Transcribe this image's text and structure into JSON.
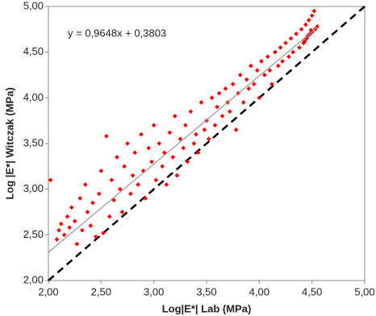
{
  "chart_data": {
    "type": "scatter",
    "x_label": "Log|E*| Lab (MPa)",
    "y_label": "Log |E*| Witczak (MPa)",
    "xlim": [
      2,
      5
    ],
    "ylim": [
      2,
      5
    ],
    "xticks": [
      {
        "value": 2,
        "label": "2,00"
      },
      {
        "value": 2.5,
        "label": "2,50"
      },
      {
        "value": 3,
        "label": "3,00"
      },
      {
        "value": 3.5,
        "label": "3,50"
      },
      {
        "value": 4,
        "label": "4,00"
      },
      {
        "value": 4.5,
        "label": "4,50"
      },
      {
        "value": 5,
        "label": "5,00"
      }
    ],
    "yticks": [
      {
        "value": 2,
        "label": "2,00"
      },
      {
        "value": 2.5,
        "label": "2,50"
      },
      {
        "value": 3,
        "label": "3,00"
      },
      {
        "value": 3.5,
        "label": "3,50"
      },
      {
        "value": 4,
        "label": "4,00"
      },
      {
        "value": 4.5,
        "label": "4,50"
      },
      {
        "value": 5,
        "label": "5,00"
      }
    ],
    "grid": false,
    "color": "#ff0000",
    "x": [
      2.02,
      2.08,
      2.1,
      2.12,
      2.15,
      2.18,
      2.2,
      2.22,
      2.25,
      2.27,
      2.3,
      2.32,
      2.35,
      2.37,
      2.4,
      2.42,
      2.45,
      2.48,
      2.5,
      2.52,
      2.55,
      2.58,
      2.6,
      2.62,
      2.65,
      2.68,
      2.7,
      2.72,
      2.75,
      2.78,
      2.8,
      2.82,
      2.85,
      2.88,
      2.9,
      2.92,
      2.95,
      2.98,
      3.0,
      3.02,
      3.05,
      3.08,
      3.1,
      3.12,
      3.15,
      3.18,
      3.2,
      3.22,
      3.25,
      3.28,
      3.3,
      3.32,
      3.35,
      3.38,
      3.4,
      3.42,
      3.45,
      3.48,
      3.5,
      3.52,
      3.55,
      3.58,
      3.6,
      3.62,
      3.65,
      3.68,
      3.7,
      3.72,
      3.75,
      3.78,
      3.8,
      3.82,
      3.85,
      3.88,
      3.9,
      3.92,
      3.95,
      3.98,
      4.0,
      4.02,
      4.05,
      4.08,
      4.1,
      4.12,
      4.15,
      4.18,
      4.2,
      4.22,
      4.25,
      4.28,
      4.3,
      4.32,
      4.35,
      4.38,
      4.4,
      4.42,
      4.44,
      4.45,
      4.47,
      4.48,
      4.5,
      4.5,
      4.52,
      4.53,
      4.55,
      4.46,
      4.49,
      4.43
    ],
    "y": [
      3.1,
      2.45,
      2.55,
      2.62,
      2.5,
      2.7,
      2.58,
      2.8,
      2.65,
      2.4,
      2.9,
      2.55,
      3.05,
      2.75,
      2.6,
      2.85,
      2.48,
      2.95,
      3.2,
      2.52,
      3.58,
      2.7,
      3.1,
      2.88,
      3.35,
      3.0,
      2.75,
      3.25,
      3.5,
      2.95,
      3.15,
      3.4,
      3.05,
      3.6,
      3.2,
      2.9,
      3.45,
      3.3,
      3.7,
      3.1,
      3.5,
      3.25,
      3.4,
      3.05,
      3.62,
      3.35,
      3.8,
      3.15,
      3.55,
      3.45,
      3.7,
      3.3,
      3.85,
      3.5,
      3.6,
      3.4,
      3.95,
      3.65,
      3.75,
      3.55,
      4.0,
      3.7,
      3.9,
      4.05,
      3.8,
      4.1,
      3.95,
      3.85,
      4.15,
      3.65,
      4.05,
      4.25,
      3.95,
      4.2,
      4.1,
      4.35,
      4.15,
      4.3,
      4.0,
      4.4,
      4.25,
      4.45,
      4.3,
      4.15,
      4.5,
      4.35,
      4.55,
      4.4,
      4.6,
      4.45,
      4.65,
      4.5,
      4.7,
      4.55,
      4.75,
      4.6,
      4.8,
      4.65,
      4.85,
      4.7,
      4.9,
      4.72,
      4.95,
      4.75,
      4.78,
      4.68,
      4.74,
      4.62
    ],
    "trendline": {
      "equation": "y = 0,9648x + 0,3803",
      "slope": 0.9648,
      "intercept": 0.3803,
      "x": [
        2,
        4.55
      ],
      "color": "#999999"
    },
    "reference_line": {
      "x": [
        2,
        5
      ],
      "y": [
        2,
        5
      ],
      "color": "#000000"
    }
  }
}
